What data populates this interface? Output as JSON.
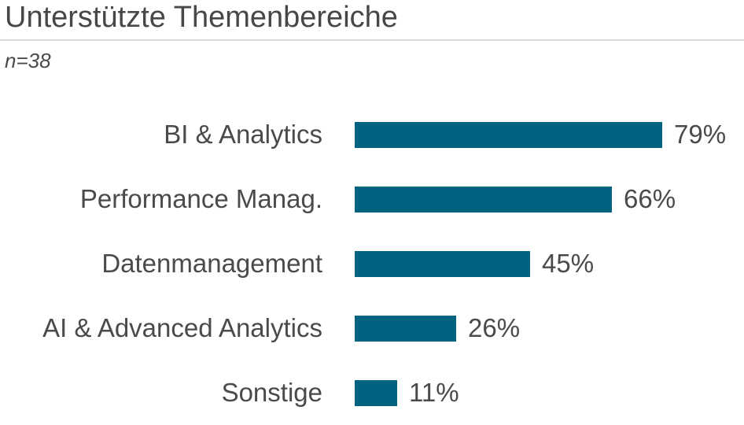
{
  "header": {
    "title": "Unterstützte Themenbereiche",
    "subtitle": "n=38"
  },
  "chart_data": {
    "type": "bar",
    "orientation": "horizontal",
    "title": "Unterstützte Themenbereiche",
    "subtitle": "n=38",
    "sample_size": 38,
    "categories": [
      "BI & Analytics",
      "Performance Manag.",
      "Datenmanagement",
      "AI & Advanced Analytics",
      "Sonstige"
    ],
    "values": [
      79,
      66,
      45,
      26,
      11
    ],
    "value_labels": [
      "79%",
      "66%",
      "45%",
      "26%",
      "11%"
    ],
    "unit": "%",
    "xlim": [
      0,
      100
    ],
    "grid": "off",
    "legend": "none",
    "bar_color": "#026380",
    "text_color": "#4a4a4a",
    "divider_color": "#d9d9d9"
  }
}
